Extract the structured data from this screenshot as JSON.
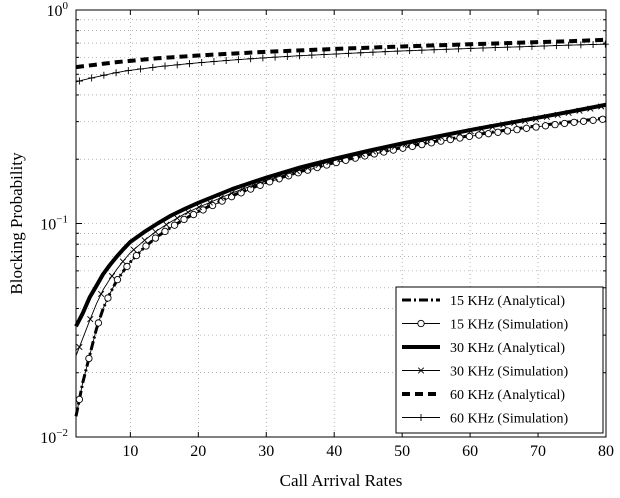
{
  "chart_data": {
    "type": "line",
    "title": "",
    "xlabel": "Call Arrival Rates",
    "ylabel": "Blocking Probability",
    "x_scale": "linear",
    "y_scale": "log",
    "xlim": [
      2,
      80
    ],
    "ylim": [
      0.01,
      1
    ],
    "x_ticks": [
      10,
      20,
      30,
      40,
      50,
      60,
      70,
      80
    ],
    "y_ticks": [
      {
        "value": 0.01,
        "base": "10",
        "exp": "−2"
      },
      {
        "value": 0.1,
        "base": "10",
        "exp": "−1"
      },
      {
        "value": 1,
        "base": "10",
        "exp": "0"
      }
    ],
    "grid": true,
    "legend_position": "bottom-right",
    "x": [
      2,
      3,
      4,
      5,
      6,
      7,
      8,
      9,
      10,
      12,
      14,
      16,
      18,
      20,
      25,
      30,
      35,
      40,
      45,
      50,
      55,
      60,
      65,
      70,
      75,
      80
    ],
    "series": [
      {
        "name": "15 KHz (Analytical)",
        "style": "dashdot",
        "marker": "none",
        "values": [
          0.0125,
          0.018,
          0.024,
          0.032,
          0.04,
          0.047,
          0.054,
          0.06,
          0.066,
          0.077,
          0.087,
          0.096,
          0.105,
          0.114,
          0.135,
          0.156,
          0.175,
          0.193,
          0.21,
          0.227,
          0.243,
          0.258,
          0.273,
          0.287,
          0.3,
          0.312
        ]
      },
      {
        "name": "15 KHz (Simulation)",
        "style": "solid-thin",
        "marker": "circle",
        "values": [
          0.0125,
          0.018,
          0.024,
          0.032,
          0.04,
          0.047,
          0.054,
          0.06,
          0.066,
          0.077,
          0.087,
          0.096,
          0.105,
          0.113,
          0.134,
          0.155,
          0.174,
          0.192,
          0.209,
          0.225,
          0.241,
          0.256,
          0.27,
          0.284,
          0.297,
          0.309
        ]
      },
      {
        "name": "30 KHz (Analytical)",
        "style": "solid-thick",
        "marker": "none",
        "values": [
          0.033,
          0.038,
          0.045,
          0.051,
          0.058,
          0.064,
          0.07,
          0.076,
          0.082,
          0.091,
          0.1,
          0.109,
          0.117,
          0.125,
          0.145,
          0.164,
          0.183,
          0.201,
          0.219,
          0.237,
          0.255,
          0.274,
          0.293,
          0.313,
          0.335,
          0.36
        ]
      },
      {
        "name": "30 KHz (Simulation)",
        "style": "solid-thin",
        "marker": "x",
        "values": [
          0.024,
          0.029,
          0.035,
          0.042,
          0.049,
          0.055,
          0.061,
          0.067,
          0.073,
          0.083,
          0.093,
          0.102,
          0.111,
          0.119,
          0.139,
          0.159,
          0.178,
          0.197,
          0.215,
          0.233,
          0.251,
          0.27,
          0.29,
          0.31,
          0.332,
          0.357
        ]
      },
      {
        "name": "60 KHz (Analytical)",
        "style": "dashed-thick",
        "marker": "none",
        "values": [
          0.54,
          0.545,
          0.55,
          0.555,
          0.56,
          0.565,
          0.57,
          0.574,
          0.578,
          0.586,
          0.594,
          0.6,
          0.606,
          0.612,
          0.625,
          0.637,
          0.647,
          0.657,
          0.666,
          0.675,
          0.683,
          0.691,
          0.699,
          0.707,
          0.715,
          0.725
        ]
      },
      {
        "name": "60 KHz (Simulation)",
        "style": "solid-thin",
        "marker": "plus",
        "values": [
          0.46,
          0.47,
          0.478,
          0.486,
          0.494,
          0.502,
          0.509,
          0.516,
          0.522,
          0.532,
          0.542,
          0.55,
          0.558,
          0.566,
          0.583,
          0.598,
          0.611,
          0.622,
          0.633,
          0.643,
          0.652,
          0.661,
          0.669,
          0.677,
          0.685,
          0.692
        ]
      }
    ]
  }
}
